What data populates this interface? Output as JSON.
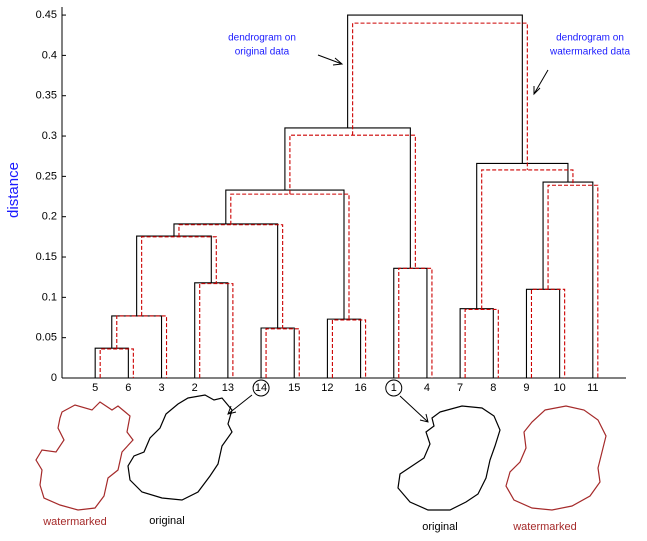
{
  "chart_data": {
    "type": "dendrogram",
    "y_label": "distance",
    "categories": [
      "5",
      "6",
      "3",
      "2",
      "13",
      "14",
      "15",
      "12",
      "16",
      "1",
      "4",
      "7",
      "8",
      "9",
      "10",
      "11"
    ],
    "circled": [
      5,
      9
    ],
    "merges": [
      [
        0,
        1
      ],
      [
        16,
        2
      ],
      [
        3,
        4
      ],
      [
        17,
        18
      ],
      [
        5,
        6
      ],
      [
        19,
        20
      ],
      [
        7,
        8
      ],
      [
        21,
        22
      ],
      [
        9,
        10
      ],
      [
        23,
        24
      ],
      [
        11,
        12
      ],
      [
        13,
        14
      ],
      [
        27,
        15
      ],
      [
        26,
        28
      ],
      [
        25,
        29
      ]
    ],
    "series": [
      {
        "color": "#000000",
        "dashed": false,
        "heights": [
          0.037,
          0.077,
          0.118,
          0.176,
          0.062,
          0.191,
          0.073,
          0.233,
          0.136,
          0.31,
          0.086,
          0.11,
          0.243,
          0.266,
          0.45
        ]
      },
      {
        "color": "#cc0000",
        "dashed": true,
        "heights": [
          0.036,
          0.077,
          0.117,
          0.175,
          0.061,
          0.19,
          0.072,
          0.228,
          0.136,
          0.301,
          0.085,
          0.11,
          0.239,
          0.258,
          0.44
        ]
      }
    ],
    "ylim": [
      0,
      0.46
    ],
    "yticks": [
      0,
      0.05,
      0.1,
      0.15,
      0.2,
      0.25,
      0.3,
      0.35,
      0.4,
      0.45
    ],
    "annotations": [
      {
        "lines": [
          "dendrogram on",
          "original data"
        ]
      },
      {
        "lines": [
          "dendrogram on",
          "watermarked data"
        ]
      }
    ],
    "shape_labels": [
      "watermarked",
      "original",
      "original",
      "watermarked"
    ]
  }
}
